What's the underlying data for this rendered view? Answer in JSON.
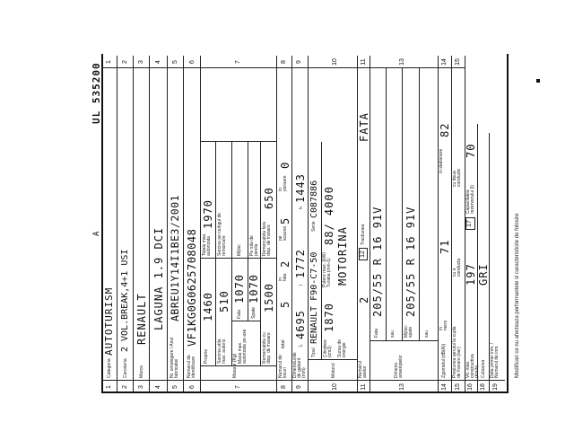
{
  "header": {
    "letter": "A",
    "serial": "UL 535200"
  },
  "rows": {
    "r1": {
      "n": "1",
      "label": "Categoria",
      "value": "AUTOTURISM"
    },
    "r2": {
      "n": "2",
      "label": "Caroseria",
      "value": "2 VOL.BREAK,4+1 USI"
    },
    "r3": {
      "n": "3",
      "label": "Marca",
      "value": "RENAULT"
    },
    "r4": {
      "n": "4",
      "label": "",
      "value": "LAGUNA 1.9 DCI"
    },
    "r5": {
      "n": "5",
      "label": "Nr. omologare / Anul fabricatiei",
      "value": "ABREU1Y14I1BE3/2001"
    },
    "r6": {
      "n": "6",
      "label": "Numarul de identificare",
      "value": "VF1KG0G0625708048"
    },
    "r7": {
      "n": "7",
      "group": "Masa e (Kg)",
      "proprie_label": "Proprie",
      "proprie": "1460",
      "totala_label": "Totala max. autorizata",
      "totala": "1970",
      "sarcina_label": "Sarcina utila max. autoriz.",
      "sarcina": "510",
      "carlig_label": "Sarcina pe carligul de remorcare",
      "axe_label": "Masa max. autorizata pe axe",
      "fata_label": "Fata",
      "fata": "1070",
      "mijloc_label": "Mijloc",
      "spate_label": "Spate",
      "spate": "1070",
      "rola_label": "Pe rola de penila",
      "rem_cu_label": "Remorcabila cu disp. de franare",
      "rem_cu": "1500",
      "rem_fara_label": "Remorcabila fara disp. de franare",
      "rem_fara": "650"
    },
    "r8": {
      "n": "8",
      "label": "Numarul de locuri",
      "total_label": "total",
      "total": "5",
      "fata_label": "in fata",
      "fata": "2",
      "scaune_label": "pe scaune",
      "scaune": "5",
      "picioare_label": "in picioare",
      "picioare": "0"
    },
    "r9": {
      "n": "9",
      "label": "Dimensiunile de gabarit (mm)",
      "L_label": "L",
      "L": "4695",
      "l_label": "l",
      "l": "1772",
      "h_label": "h",
      "h": "1443"
    },
    "r10": {
      "n": "10",
      "group": "Motorul",
      "tip_label": "Tipul",
      "tip": "RENAULT F90-C7-50",
      "serie_label": "Serie",
      "serie": "C087886",
      "cil_label": "Cilindree (cm3)",
      "cil": "1870",
      "putere_label": "Putere max. (kW) Turatia (min-1)",
      "putere": "88/ 4000",
      "sursa_label": "Sursa de energie",
      "sursa": "MOTORINA"
    },
    "r11": {
      "n": "11",
      "label": "Numarul axelor",
      "value": "2",
      "n12": "12",
      "tract_label": "Tractiunea",
      "tract": "FATA"
    },
    "r13": {
      "n": "13",
      "group": "Dimens. anvelopelor",
      "fata_label": "Fata",
      "fata": "205/55 R 16 91V",
      "sau1": "sau",
      "spate_label": "Mijloc-spate",
      "spate": "205/55 R 16 91V",
      "sau2": "sau"
    },
    "r14": {
      "n": "14",
      "label": "Zgomotul (dB(A))",
      "mers_label": "in mers",
      "mers": "71",
      "stat_label": "in stationare",
      "stat": "82"
    },
    "r15": {
      "n": "15",
      "label": "Presiunea aerului la cupla de franare (bar)",
      "o_label": "cu o conducta",
      "doua_label": "cu doua conducte"
    },
    "r16": {
      "n": "16",
      "label": "Vit. max. constructiva (km/h)",
      "value": "197",
      "n17": "17",
      "rez_label": "Capacitatea rezervorului (l)",
      "rez": "70"
    },
    "r18": {
      "n": "18",
      "label": "Culoarea",
      "value": "GRI"
    },
    "r19": {
      "n": "19",
      "label": "Data primei inm. / Numarul de inm."
    }
  },
  "footer": {
    "note": "Modificari ce nu afecteaza performantele si caracteristicile de folosire"
  }
}
